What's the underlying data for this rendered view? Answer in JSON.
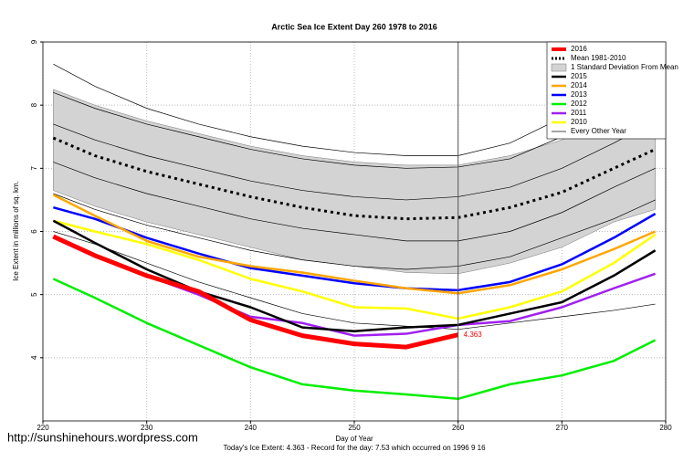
{
  "chart_data": {
    "type": "line",
    "title": "Arctic Sea Ice Extent Day 260 1978 to 2016",
    "xlabel": "Day of Year",
    "ylabel": "Ice Extent in millions of sq. km.",
    "footer": "Today's Ice Extent: 4.363  - Record for the day: 7.53 which occurred on 1996 9 16",
    "watermark": "http://sunshinehours.wordpress.com",
    "xlim": [
      220,
      280
    ],
    "xticks": [
      220,
      230,
      240,
      250,
      260,
      270,
      280
    ],
    "ylim": [
      3,
      9
    ],
    "yticks": [
      4,
      5,
      6,
      7,
      8,
      9
    ],
    "grid": true,
    "marker_x": 260,
    "legend": "top-right",
    "x": [
      221,
      225,
      230,
      235,
      240,
      245,
      250,
      255,
      260,
      265,
      270,
      275,
      279
    ],
    "series": [
      {
        "name": "2016",
        "color": "#ff0000",
        "style": "thick",
        "values": [
          5.92,
          5.62,
          5.3,
          5.05,
          4.6,
          4.35,
          4.22,
          4.17,
          4.363,
          null,
          null,
          null,
          null
        ]
      },
      {
        "name": "Mean 1981-2010",
        "color": "#000000",
        "style": "dotted",
        "values": [
          7.48,
          7.2,
          6.95,
          6.75,
          6.55,
          6.38,
          6.25,
          6.2,
          6.22,
          6.38,
          6.62,
          7.0,
          7.3
        ]
      },
      {
        "name": "1 Standard Deviation From Mean",
        "color": "#d3d3d3",
        "style": "band",
        "upper": [
          8.25,
          8.0,
          7.75,
          7.55,
          7.35,
          7.2,
          7.1,
          7.05,
          7.05,
          7.2,
          7.45,
          7.85,
          8.25
        ],
        "lower": [
          6.65,
          6.4,
          6.15,
          5.95,
          5.75,
          5.55,
          5.45,
          5.35,
          5.33,
          5.5,
          5.75,
          6.15,
          6.35
        ]
      },
      {
        "name": "2015",
        "color": "#000000",
        "style": "line",
        "values": [
          6.17,
          5.82,
          5.4,
          5.05,
          4.8,
          4.48,
          4.42,
          4.48,
          4.52,
          4.7,
          4.88,
          5.3,
          5.7
        ]
      },
      {
        "name": "2014",
        "color": "#ffa500",
        "style": "line",
        "values": [
          6.58,
          6.25,
          5.85,
          5.6,
          5.45,
          5.35,
          5.22,
          5.1,
          5.02,
          5.15,
          5.4,
          5.72,
          6.0
        ]
      },
      {
        "name": "2013",
        "color": "#0000ff",
        "style": "line",
        "values": [
          6.38,
          6.2,
          5.9,
          5.65,
          5.42,
          5.3,
          5.18,
          5.1,
          5.07,
          5.2,
          5.48,
          5.9,
          6.28
        ]
      },
      {
        "name": "2012",
        "color": "#00ee00",
        "style": "line",
        "values": [
          5.25,
          4.95,
          4.55,
          4.2,
          3.85,
          3.58,
          3.48,
          3.42,
          3.35,
          3.58,
          3.72,
          3.95,
          4.28
        ]
      },
      {
        "name": "2011",
        "color": "#a020f0",
        "style": "line",
        "values": [
          5.9,
          5.6,
          5.3,
          5.0,
          4.65,
          4.55,
          4.35,
          4.38,
          4.52,
          4.58,
          4.8,
          5.1,
          5.33
        ]
      },
      {
        "name": "2010",
        "color": "#ffff00",
        "style": "line",
        "values": [
          6.17,
          6.0,
          5.8,
          5.55,
          5.25,
          5.05,
          4.8,
          4.78,
          4.62,
          4.8,
          5.05,
          5.5,
          5.95
        ]
      },
      {
        "name": "Every Other Year",
        "color": "#000000",
        "style": "thin",
        "lines": [
          [
            8.65,
            8.3,
            7.95,
            7.7,
            7.5,
            7.35,
            7.25,
            7.2,
            7.2,
            7.4,
            7.8,
            8.3,
            8.8
          ],
          [
            8.2,
            7.95,
            7.7,
            7.5,
            7.3,
            7.15,
            7.05,
            7.0,
            7.02,
            7.15,
            7.5,
            7.9,
            8.3
          ],
          [
            7.7,
            7.45,
            7.2,
            7.0,
            6.8,
            6.65,
            6.55,
            6.5,
            6.55,
            6.7,
            7.0,
            7.4,
            7.75
          ],
          [
            7.1,
            6.85,
            6.6,
            6.4,
            6.2,
            6.05,
            5.95,
            5.85,
            5.85,
            6.0,
            6.3,
            6.7,
            7.0
          ],
          [
            6.6,
            6.35,
            6.1,
            5.9,
            5.7,
            5.55,
            5.45,
            5.4,
            5.45,
            5.6,
            5.9,
            6.2,
            6.5
          ],
          [
            6.0,
            5.8,
            5.5,
            5.2,
            4.95,
            4.7,
            4.55,
            4.5,
            4.45,
            4.55,
            4.65,
            4.75,
            4.85
          ]
        ]
      }
    ]
  }
}
